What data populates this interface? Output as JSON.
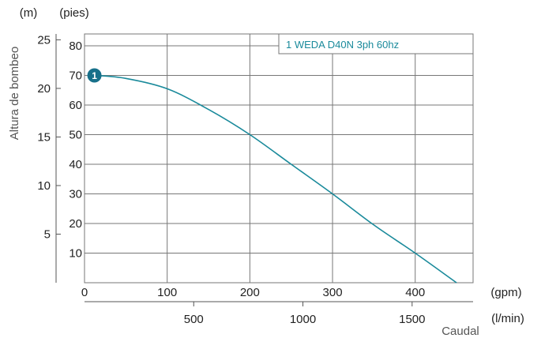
{
  "chart_data": {
    "type": "line",
    "accent_color": "#1a8a9b",
    "marker_color": "#17708a",
    "grid": true,
    "legend_position": "top-right",
    "legend_label": "1 WEDA D40N 3ph 60hz",
    "primary_x": {
      "unit": "(gpm)",
      "ticks": [
        0,
        100,
        200,
        300,
        400
      ],
      "range": [
        0,
        470
      ]
    },
    "secondary_x": {
      "unit": "(l/min)",
      "ticks": [
        500,
        1000,
        1500
      ],
      "title": "Caudal"
    },
    "primary_y": {
      "unit": "(pies)",
      "ticks": [
        10,
        20,
        30,
        40,
        50,
        60,
        70,
        80
      ],
      "range": [
        0,
        84
      ]
    },
    "secondary_y": {
      "unit": "(m)",
      "ticks": [
        5,
        10,
        15,
        20,
        25
      ],
      "title": "Altura de bombeo"
    },
    "series": [
      {
        "name": "1 WEDA D40N 3ph 60hz",
        "marker_label": "1",
        "x": [
          12,
          50,
          100,
          150,
          200,
          250,
          300,
          350,
          400,
          450
        ],
        "y": [
          70,
          69,
          65.5,
          58.5,
          50,
          40,
          30,
          19.5,
          10,
          0
        ]
      }
    ]
  }
}
